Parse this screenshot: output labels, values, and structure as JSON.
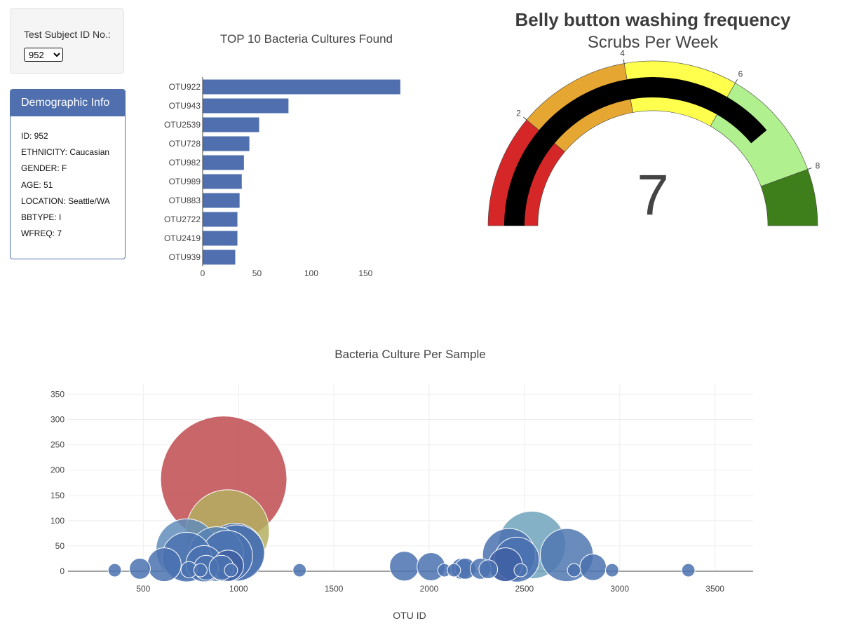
{
  "selector": {
    "label": "Test Subject ID No.:",
    "selected": "952"
  },
  "demographics": {
    "title": "Demographic Info",
    "rows": [
      {
        "key": "ID",
        "value": "952"
      },
      {
        "key": "ETHNICITY",
        "value": "Caucasian"
      },
      {
        "key": "GENDER",
        "value": "F"
      },
      {
        "key": "AGE",
        "value": "51"
      },
      {
        "key": "LOCATION",
        "value": "Seattle/WA"
      },
      {
        "key": "BBTYPE",
        "value": "I"
      },
      {
        "key": "WFREQ",
        "value": "7"
      }
    ]
  },
  "chart_data": [
    {
      "type": "bar",
      "orientation": "horizontal",
      "title": "TOP 10 Bacteria Cultures Found",
      "categories": [
        "OTU922",
        "OTU943",
        "OTU2539",
        "OTU728",
        "OTU982",
        "OTU989",
        "OTU883",
        "OTU2722",
        "OTU2419",
        "OTU939"
      ],
      "values": [
        182,
        79,
        52,
        43,
        38,
        36,
        34,
        32,
        32,
        30
      ],
      "xlim": [
        0,
        184
      ],
      "xticks": [
        "0",
        "50",
        "100",
        "150"
      ],
      "color": "#4f6fae"
    },
    {
      "type": "gauge",
      "title": "Belly button washing frequency",
      "subtitle": "Scrubs Per Week",
      "value": 7,
      "value_label": "7",
      "range": [
        0,
        9
      ],
      "ticks": [
        "2",
        "4",
        "6",
        "8"
      ],
      "bands": [
        {
          "from": 0,
          "to": 2,
          "color": "#d62728"
        },
        {
          "from": 2,
          "to": 4,
          "color": "#e6a632"
        },
        {
          "from": 4,
          "to": 6,
          "color": "#ffff4d"
        },
        {
          "from": 6,
          "to": 8,
          "color": "#b0f08e"
        },
        {
          "from": 8,
          "to": 9,
          "color": "#3f7f1b"
        }
      ],
      "bar_color": "#000000"
    },
    {
      "type": "scatter",
      "title": "Bacteria Culture Per Sample",
      "xlabel": "OTU ID",
      "ylabel": "",
      "xlim": [
        105,
        3700
      ],
      "ylim": [
        0,
        370
      ],
      "xticks": [
        "500",
        "1000",
        "1500",
        "2000",
        "2500",
        "3000",
        "3500"
      ],
      "yticks": [
        "0",
        "50",
        "100",
        "150",
        "200",
        "250",
        "300",
        "350"
      ],
      "grid": true,
      "points": [
        {
          "x": 922,
          "y": 182,
          "c": "#be4b4f"
        },
        {
          "x": 943,
          "y": 79,
          "c": "#b4af62"
        },
        {
          "x": 2539,
          "y": 52,
          "c": "#6ea3bb"
        },
        {
          "x": 728,
          "y": 43,
          "c": "#628dbb"
        },
        {
          "x": 982,
          "y": 38,
          "c": "#4b72b0"
        },
        {
          "x": 989,
          "y": 36,
          "c": "#4b72b0"
        },
        {
          "x": 883,
          "y": 34,
          "c": "#5683b4"
        },
        {
          "x": 2722,
          "y": 32,
          "c": "#5078b2"
        },
        {
          "x": 2419,
          "y": 32,
          "c": "#4b72b0"
        },
        {
          "x": 939,
          "y": 30,
          "c": "#4b72b0"
        },
        {
          "x": 728,
          "y": 28,
          "c": "#4b72b0"
        },
        {
          "x": 2460,
          "y": 23,
          "c": "#4b72b0"
        },
        {
          "x": 819,
          "y": 15,
          "c": "#4b72b0"
        },
        {
          "x": 610,
          "y": 13,
          "c": "#4b72b0"
        },
        {
          "x": 2400,
          "y": 13,
          "c": "#3f5fa3"
        },
        {
          "x": 945,
          "y": 11,
          "c": "#3f5fa3"
        },
        {
          "x": 1870,
          "y": 10,
          "c": "#4b72b0"
        },
        {
          "x": 2010,
          "y": 9,
          "c": "#4b72b0"
        },
        {
          "x": 2860,
          "y": 8,
          "c": "#4b72b0"
        },
        {
          "x": 830,
          "y": 7,
          "c": "#4b72b0"
        },
        {
          "x": 910,
          "y": 7,
          "c": "#4b72b0"
        },
        {
          "x": 482,
          "y": 5,
          "c": "#4b72b0"
        },
        {
          "x": 2170,
          "y": 5,
          "c": "#4b72b0"
        },
        {
          "x": 2190,
          "y": 5,
          "c": "#4b72b0"
        },
        {
          "x": 2270,
          "y": 5,
          "c": "#4b72b0"
        },
        {
          "x": 2310,
          "y": 4,
          "c": "#4b72b0"
        },
        {
          "x": 350,
          "y": 2,
          "c": "#4b72b0"
        },
        {
          "x": 740,
          "y": 3,
          "c": "#4b72b0"
        },
        {
          "x": 800,
          "y": 2,
          "c": "#4b72b0"
        },
        {
          "x": 960,
          "y": 2,
          "c": "#4b72b0"
        },
        {
          "x": 1320,
          "y": 2,
          "c": "#4b72b0"
        },
        {
          "x": 2080,
          "y": 2,
          "c": "#4b72b0"
        },
        {
          "x": 2130,
          "y": 2,
          "c": "#4b72b0"
        },
        {
          "x": 2480,
          "y": 2,
          "c": "#4b72b0"
        },
        {
          "x": 2760,
          "y": 2,
          "c": "#4b72b0"
        },
        {
          "x": 2960,
          "y": 2,
          "c": "#4b72b0"
        },
        {
          "x": 3360,
          "y": 2,
          "c": "#4b72b0"
        }
      ]
    }
  ]
}
